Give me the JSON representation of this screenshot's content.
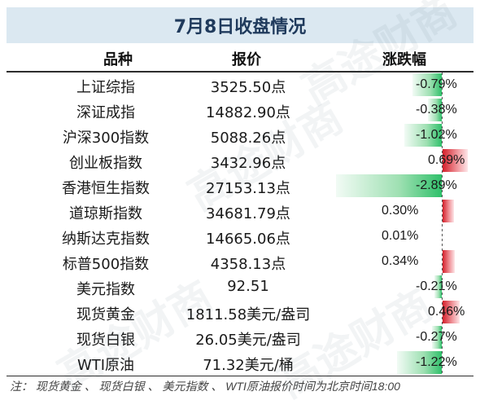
{
  "title": "7月8日收盘情况",
  "headers": {
    "name": "品种",
    "price": "报价",
    "change": "涨跌幅"
  },
  "rows": [
    {
      "name": "上证综指",
      "price": "3525.50点",
      "change": "-0.79%",
      "pct": -0.79
    },
    {
      "name": "深证成指",
      "price": "14882.90点",
      "change": "-0.38%",
      "pct": -0.38
    },
    {
      "name": "沪深300指数",
      "price": "5088.26点",
      "change": "-1.02%",
      "pct": -1.02
    },
    {
      "name": "创业板指数",
      "price": "3432.96点",
      "change": "0.69%",
      "pct": 0.69
    },
    {
      "name": "香港恒生指数",
      "price": "27153.13点",
      "change": "-2.89%",
      "pct": -2.89
    },
    {
      "name": "道琼斯指数",
      "price": "34681.79点",
      "change": "0.30%",
      "pct": 0.3
    },
    {
      "name": "纳斯达克指数",
      "price": "14665.06点",
      "change": "0.01%",
      "pct": 0.01
    },
    {
      "name": "标普500指数",
      "price": "4358.13点",
      "change": "0.34%",
      "pct": 0.34
    },
    {
      "name": "美元指数",
      "price": "92.51",
      "change": "-0.21%",
      "pct": -0.21
    },
    {
      "name": "现货黄金",
      "price": "1811.58美元/盎司",
      "change": "0.46%",
      "pct": 0.46
    },
    {
      "name": "现货白银",
      "price": "26.05美元/盎司",
      "change": "-0.27%",
      "pct": -0.27
    },
    {
      "name": "WTI原油",
      "price": "71.32美元/桶",
      "change": "-1.22%",
      "pct": -1.22
    }
  ],
  "footnote": "注：  现货黄金 、 现货白银 、 美元指数 、 WTI原油报价时间为北京时间18:00",
  "watermark": "高途财商",
  "colors": {
    "negative": "#2fc06a",
    "positive": "#d41f2a",
    "title_bg": "#dbe8f1"
  }
}
